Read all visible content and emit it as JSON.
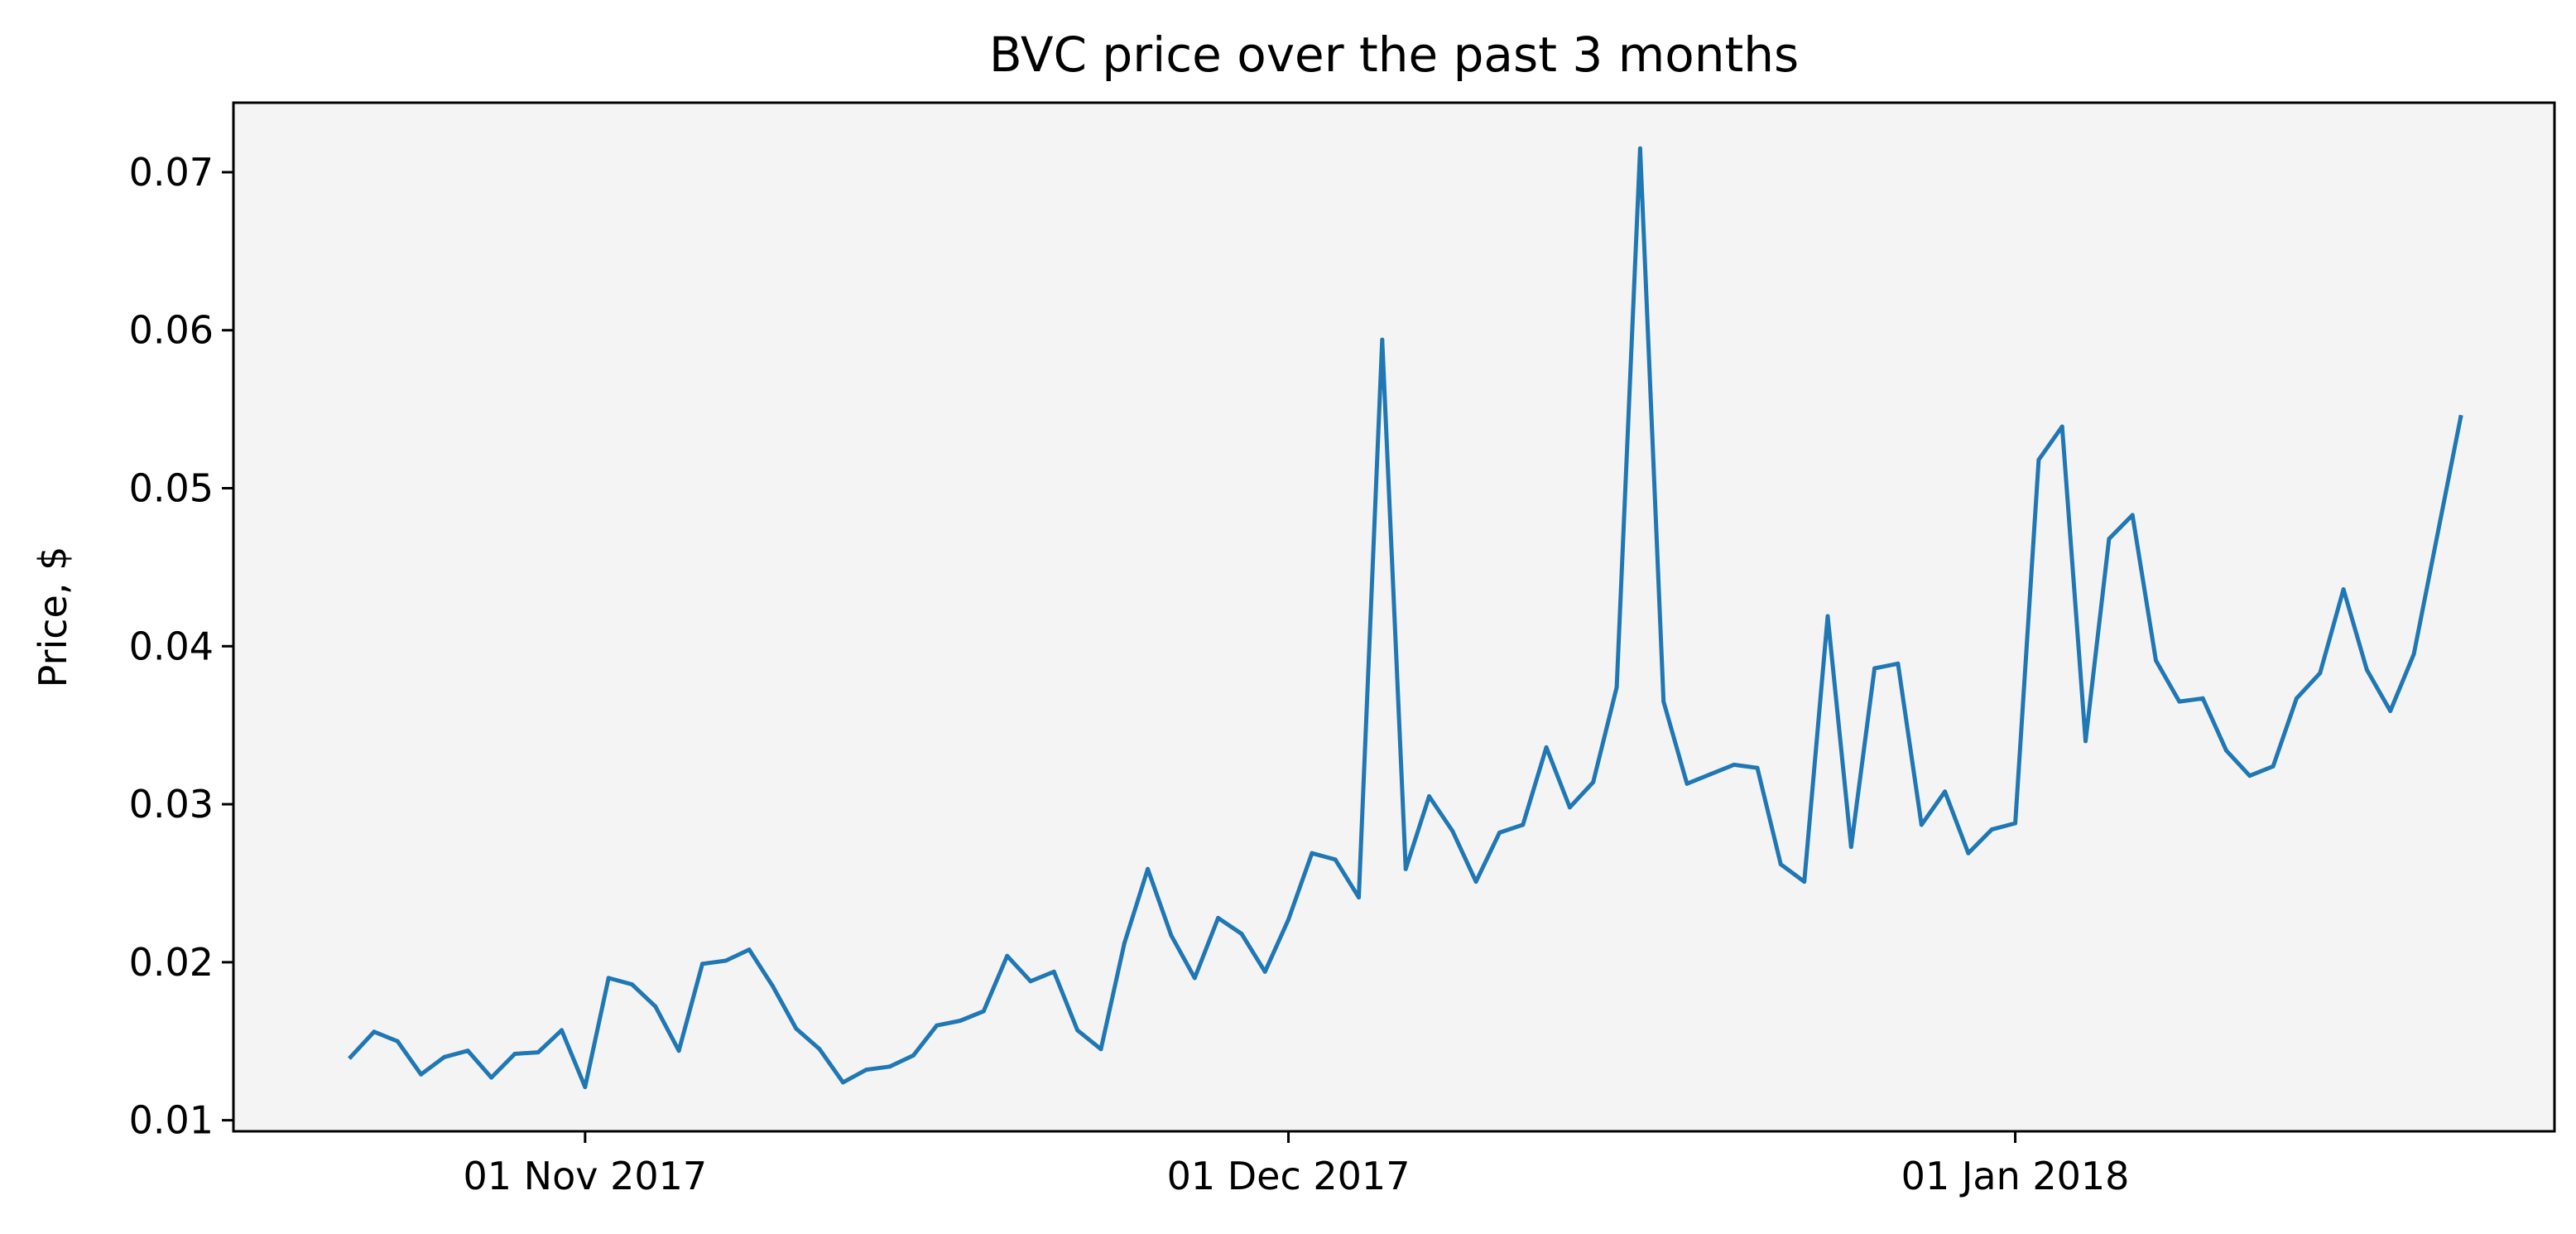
{
  "chart_data": {
    "type": "line",
    "title": "BVC price over the past 3 months",
    "xlabel": "",
    "ylabel": "Price, $",
    "x_start": "2017-10-22",
    "x_step_days": 1,
    "x_ticks": [
      {
        "date": "2017-11-01",
        "label": "01 Nov 2017"
      },
      {
        "date": "2017-12-01",
        "label": "01 Dec 2017"
      },
      {
        "date": "2018-01-01",
        "label": "01 Jan 2018"
      }
    ],
    "y_ticks": [
      {
        "value": 0.01,
        "label": "0.01"
      },
      {
        "value": 0.02,
        "label": "0.02"
      },
      {
        "value": 0.03,
        "label": "0.03"
      },
      {
        "value": 0.04,
        "label": "0.04"
      },
      {
        "value": 0.05,
        "label": "0.05"
      },
      {
        "value": 0.06,
        "label": "0.06"
      },
      {
        "value": 0.07,
        "label": "0.07"
      }
    ],
    "xlim": [
      "2017-10-17",
      "2018-01-24"
    ],
    "ylim": [
      0.0093,
      0.0744
    ],
    "grid": false,
    "legend": "none",
    "background": "#f4f4f4",
    "series": [
      {
        "color": "#1f77b4",
        "values": [
          0.014,
          0.0156,
          0.015,
          0.0129,
          0.014,
          0.0144,
          0.0127,
          0.0142,
          0.0143,
          0.0157,
          0.0121,
          0.019,
          0.0186,
          0.0172,
          0.0144,
          0.0199,
          0.0201,
          0.0208,
          0.0185,
          0.0158,
          0.0145,
          0.0124,
          0.0132,
          0.0134,
          0.0141,
          0.016,
          0.0163,
          0.0169,
          0.0204,
          0.0188,
          0.0194,
          0.0157,
          0.0145,
          0.0212,
          0.0259,
          0.0217,
          0.019,
          0.0228,
          0.0218,
          0.0194,
          0.0227,
          0.0269,
          0.0265,
          0.0241,
          0.0594,
          0.0259,
          0.0305,
          0.0283,
          0.0251,
          0.0282,
          0.0287,
          0.0336,
          0.0298,
          0.0314,
          0.0374,
          0.0715,
          0.0365,
          0.0313,
          0.0319,
          0.0325,
          0.0323,
          0.0262,
          0.0251,
          0.0419,
          0.0273,
          0.0386,
          0.0389,
          0.0287,
          0.0308,
          0.0269,
          0.0284,
          0.0288,
          0.0518,
          0.0539,
          0.034,
          0.0468,
          0.0483,
          0.0391,
          0.0365,
          0.0367,
          0.0334,
          0.0318,
          0.0324,
          0.0367,
          0.0383,
          0.0436,
          0.0385,
          0.0359,
          0.0395,
          0.047,
          0.0545
        ]
      }
    ]
  }
}
